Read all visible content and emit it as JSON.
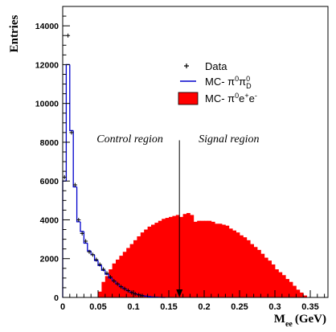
{
  "chart_data": {
    "type": "bar",
    "ylabel": "Entries",
    "xlabel": "M",
    "xlabel_sub": "ee",
    "xlabel_unit": "(GeV)",
    "xlim": [
      0,
      0.375
    ],
    "ylim": [
      0,
      15000
    ],
    "bin_width": 0.005,
    "x_ticks": [
      {
        "v": 0,
        "label": "0"
      },
      {
        "v": 0.05,
        "label": "0.05"
      },
      {
        "v": 0.1,
        "label": "0.1"
      },
      {
        "v": 0.15,
        "label": "0.15"
      },
      {
        "v": 0.2,
        "label": "0.2"
      },
      {
        "v": 0.25,
        "label": "0.25"
      },
      {
        "v": 0.3,
        "label": "0.3"
      },
      {
        "v": 0.35,
        "label": "0.35"
      }
    ],
    "y_ticks": [
      {
        "v": 0,
        "label": "0"
      },
      {
        "v": 2000,
        "label": "2000"
      },
      {
        "v": 4000,
        "label": "4000"
      },
      {
        "v": 6000,
        "label": "6000"
      },
      {
        "v": 8000,
        "label": "8000"
      },
      {
        "v": 10000,
        "label": "10000"
      },
      {
        "v": 12000,
        "label": "12000"
      },
      {
        "v": 14000,
        "label": "14000"
      }
    ],
    "legend": {
      "position": "top-right",
      "entries": [
        {
          "key": "data",
          "label": "Data"
        },
        {
          "key": "dalitz",
          "label": "MC- π⁰π⁰_D"
        },
        {
          "key": "signal",
          "label": "MC- π⁰e⁺e⁻"
        }
      ]
    },
    "series": [
      {
        "key": "signal",
        "name": "MC- π⁰e⁺e⁻",
        "style": "filled-histogram",
        "color": "#ff0000",
        "bin_start": 0.0,
        "values": [
          0,
          0,
          0,
          0,
          0,
          0,
          0,
          0,
          0,
          0,
          300,
          800,
          1100,
          1450,
          1750,
          1950,
          2150,
          2350,
          2550,
          2750,
          2950,
          3150,
          3350,
          3500,
          3650,
          3750,
          3850,
          3950,
          4050,
          4100,
          4150,
          4200,
          4250,
          4150,
          4300,
          4350,
          4250,
          3900,
          3950,
          3950,
          3950,
          3950,
          3900,
          3800,
          3800,
          3750,
          3700,
          3550,
          3450,
          3350,
          3200,
          3100,
          2950,
          2750,
          2600,
          2450,
          2250,
          2050,
          1900,
          1700,
          1450,
          1300,
          1150,
          950,
          800,
          600,
          400,
          250,
          100,
          0
        ]
      },
      {
        "key": "dalitz",
        "name": "MC- π⁰π⁰_D",
        "style": "step-histogram",
        "color": "#0000cc",
        "bin_start": 0.0,
        "values": [
          6000,
          12000,
          8600,
          5700,
          3900,
          3400,
          2800,
          2400,
          2200,
          1900,
          1650,
          1400,
          1200,
          1000,
          850,
          700,
          560,
          450,
          350,
          260,
          190,
          140,
          100,
          70,
          45,
          25,
          12,
          5,
          0
        ]
      },
      {
        "key": "data",
        "name": "Data",
        "style": "points",
        "color": "#000000",
        "points": [
          {
            "x": 0.0025,
            "y": 6200
          },
          {
            "x": 0.0075,
            "y": 13500
          },
          {
            "x": 0.0125,
            "y": 8500
          },
          {
            "x": 0.0175,
            "y": 5800
          },
          {
            "x": 0.0225,
            "y": 4000
          },
          {
            "x": 0.0275,
            "y": 3300
          },
          {
            "x": 0.0325,
            "y": 2900
          },
          {
            "x": 0.0375,
            "y": 2350
          },
          {
            "x": 0.0425,
            "y": 2200
          },
          {
            "x": 0.0475,
            "y": 1950
          },
          {
            "x": 0.0525,
            "y": 1700
          },
          {
            "x": 0.0575,
            "y": 1450
          },
          {
            "x": 0.0625,
            "y": 1250
          },
          {
            "x": 0.0675,
            "y": 1050
          },
          {
            "x": 0.0725,
            "y": 850
          },
          {
            "x": 0.0775,
            "y": 700
          },
          {
            "x": 0.0825,
            "y": 550
          },
          {
            "x": 0.0875,
            "y": 450
          },
          {
            "x": 0.0925,
            "y": 350
          },
          {
            "x": 0.0975,
            "y": 250
          },
          {
            "x": 0.1025,
            "y": 180
          },
          {
            "x": 0.1075,
            "y": 130
          },
          {
            "x": 0.1125,
            "y": 90
          }
        ]
      }
    ],
    "annotations": [
      {
        "key": "control",
        "text": "Control region",
        "x": 0.095,
        "y": 8000
      },
      {
        "key": "signal",
        "text": "Signal region",
        "x": 0.235,
        "y": 8000
      }
    ],
    "cut_arrow": {
      "x": 0.165,
      "y_top": 8100,
      "y_bottom": 0
    }
  }
}
